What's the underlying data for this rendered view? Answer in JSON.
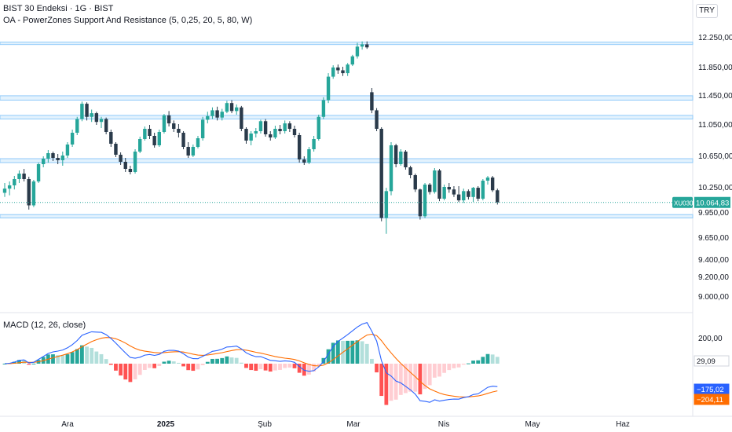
{
  "header": {
    "title": "BIST 30 Endeksi · 1G · BIST",
    "indicator": "OA - PowerZones Support And Resistance (5, 0,25, 20, 5, 80, W)",
    "currency": "TRY"
  },
  "colors": {
    "up": "#26a69a",
    "down": "#2a3a4a",
    "zone": "#90caf9",
    "price_line": "#26a69a",
    "macd_line": "#2962ff",
    "signal_line": "#ff6d00",
    "hist_pos": "#b2dfdb",
    "hist_pos_strong": "#26a69a",
    "hist_neg": "#ffcdd2",
    "hist_neg_strong": "#ff5252",
    "axis_text": "#131722"
  },
  "chart_data": [
    {
      "type": "candlestick",
      "title": "BIST 30 Endeksi · 1G · BIST",
      "symbol": "XU030",
      "last_price": "10.064,83",
      "y_ticks": [
        "12.250,00",
        "11.850,00",
        "11.450,00",
        "11.050,00",
        "10.650,00",
        "10.250,00",
        "9.950,00",
        "9.650,00",
        "9.400,00",
        "9.200,00",
        "9.000,00"
      ],
      "y_tick_values": [
        12250,
        11850,
        11450,
        11050,
        10650,
        10250,
        9950,
        9650,
        9400,
        9200,
        9000
      ],
      "x_ticks": [
        "Ara",
        "2025",
        "Şub",
        "Mar",
        "Nis",
        "May",
        "Haz"
      ],
      "support_resistance_zones": [
        [
          12150,
          12180
        ],
        [
          11380,
          11440
        ],
        [
          11120,
          11170
        ],
        [
          10560,
          10610
        ],
        [
          9880,
          9920
        ]
      ],
      "candles": [
        [
          10180,
          10300,
          10130,
          10230
        ],
        [
          10230,
          10320,
          10150,
          10270
        ],
        [
          10270,
          10390,
          10220,
          10350
        ],
        [
          10350,
          10460,
          10300,
          10420
        ],
        [
          10420,
          10480,
          10320,
          10350
        ],
        [
          10350,
          10380,
          9980,
          10030
        ],
        [
          10030,
          10340,
          10010,
          10320
        ],
        [
          10320,
          10560,
          10300,
          10540
        ],
        [
          10540,
          10640,
          10500,
          10610
        ],
        [
          10610,
          10720,
          10560,
          10680
        ],
        [
          10680,
          10700,
          10580,
          10620
        ],
        [
          10620,
          10670,
          10540,
          10590
        ],
        [
          10590,
          10700,
          10520,
          10650
        ],
        [
          10650,
          10820,
          10620,
          10790
        ],
        [
          10790,
          10980,
          10760,
          10940
        ],
        [
          10940,
          11150,
          10910,
          11120
        ],
        [
          11120,
          11360,
          11090,
          11330
        ],
        [
          11330,
          11350,
          11100,
          11150
        ],
        [
          11150,
          11250,
          11080,
          11200
        ],
        [
          11200,
          11220,
          11040,
          11080
        ],
        [
          11080,
          11150,
          11000,
          11120
        ],
        [
          11120,
          11140,
          10920,
          10950
        ],
        [
          10950,
          10980,
          10760,
          10800
        ],
        [
          10800,
          10820,
          10630,
          10660
        ],
        [
          10660,
          10690,
          10530,
          10570
        ],
        [
          10570,
          10620,
          10440,
          10480
        ],
        [
          10480,
          10520,
          10410,
          10440
        ],
        [
          10440,
          10730,
          10420,
          10700
        ],
        [
          10700,
          10890,
          10680,
          10860
        ],
        [
          10860,
          11020,
          10840,
          10990
        ],
        [
          10990,
          11040,
          10860,
          10900
        ],
        [
          10900,
          10940,
          10750,
          10780
        ],
        [
          10780,
          10980,
          10760,
          10950
        ],
        [
          10950,
          11190,
          10930,
          11170
        ],
        [
          11170,
          11230,
          11020,
          11060
        ],
        [
          11060,
          11100,
          10950,
          10990
        ],
        [
          10990,
          11050,
          10880,
          10940
        ],
        [
          10940,
          10960,
          10730,
          10760
        ],
        [
          10760,
          10820,
          10620,
          10650
        ],
        [
          10650,
          10790,
          10630,
          10760
        ],
        [
          10760,
          10900,
          10740,
          10870
        ],
        [
          10870,
          11150,
          10840,
          11110
        ],
        [
          11110,
          11220,
          11060,
          11160
        ],
        [
          11160,
          11280,
          11120,
          11240
        ],
        [
          11240,
          11290,
          11100,
          11140
        ],
        [
          11140,
          11260,
          11100,
          11220
        ],
        [
          11220,
          11370,
          11200,
          11340
        ],
        [
          11340,
          11380,
          11200,
          11230
        ],
        [
          11230,
          11320,
          11180,
          11280
        ],
        [
          11280,
          11300,
          10960,
          10990
        ],
        [
          10990,
          11010,
          10800,
          10840
        ],
        [
          10840,
          10960,
          10780,
          10930
        ],
        [
          10930,
          11000,
          10880,
          10960
        ],
        [
          10960,
          11110,
          10930,
          11090
        ],
        [
          11090,
          11120,
          10890,
          10920
        ],
        [
          10920,
          10960,
          10840,
          10880
        ],
        [
          10880,
          11030,
          10860,
          10990
        ],
        [
          10990,
          11040,
          10920,
          10960
        ],
        [
          10960,
          11100,
          10930,
          11060
        ],
        [
          11060,
          11090,
          10950,
          10990
        ],
        [
          10990,
          11030,
          10880,
          10910
        ],
        [
          10910,
          10940,
          10560,
          10600
        ],
        [
          10600,
          10640,
          10530,
          10560
        ],
        [
          10560,
          10760,
          10540,
          10730
        ],
        [
          10730,
          10900,
          10700,
          10860
        ],
        [
          10860,
          11180,
          10840,
          11150
        ],
        [
          11150,
          11420,
          11120,
          11380
        ],
        [
          11380,
          11760,
          11340,
          11710
        ],
        [
          11710,
          11870,
          11680,
          11840
        ],
        [
          11840,
          11880,
          11750,
          11800
        ],
        [
          11800,
          11850,
          11720,
          11760
        ],
        [
          11760,
          11900,
          11720,
          11880
        ],
        [
          11880,
          12010,
          11860,
          11990
        ],
        [
          11990,
          12170,
          11960,
          12120
        ],
        [
          12120,
          12190,
          12080,
          12150
        ],
        [
          12150,
          12190,
          12090,
          12110
        ],
        [
          11490,
          11550,
          11200,
          11240
        ],
        [
          11240,
          11270,
          10960,
          10990
        ],
        [
          10990,
          11010,
          9840,
          9880
        ],
        [
          9880,
          10240,
          9690,
          10200
        ],
        [
          10200,
          10820,
          10150,
          10780
        ],
        [
          10780,
          10800,
          10500,
          10540
        ],
        [
          10540,
          10730,
          10520,
          10700
        ],
        [
          10700,
          10720,
          10470,
          10500
        ],
        [
          10500,
          10520,
          10360,
          10400
        ],
        [
          10400,
          10420,
          10190,
          10220
        ],
        [
          10220,
          10230,
          9860,
          9900
        ],
        [
          9900,
          10300,
          9880,
          10280
        ],
        [
          10280,
          10300,
          10160,
          10190
        ],
        [
          10190,
          10490,
          10170,
          10460
        ],
        [
          10460,
          10480,
          10080,
          10110
        ],
        [
          10110,
          10280,
          10090,
          10250
        ],
        [
          10250,
          10300,
          10180,
          10220
        ],
        [
          10220,
          10260,
          10130,
          10160
        ],
        [
          10160,
          10260,
          10070,
          10090
        ],
        [
          10090,
          10230,
          10060,
          10200
        ],
        [
          10200,
          10220,
          10100,
          10130
        ],
        [
          10130,
          10250,
          10070,
          10240
        ],
        [
          10240,
          10260,
          10080,
          10110
        ],
        [
          10110,
          10350,
          10090,
          10330
        ],
        [
          10330,
          10390,
          10280,
          10370
        ],
        [
          10370,
          10390,
          10190,
          10210
        ],
        [
          10210,
          10230,
          10040,
          10065
        ]
      ]
    },
    {
      "type": "macd",
      "title": "MACD (12, 26, close)",
      "y_ticks": [
        "200,00"
      ],
      "values": {
        "histogram": "29,09",
        "macd": "−175,02",
        "signal": "−204,11"
      }
    }
  ]
}
